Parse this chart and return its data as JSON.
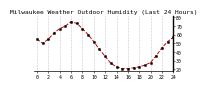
{
  "title": "Milwaukee Weather Outdoor Humidity (Last 24 Hours)",
  "x_values": [
    0,
    1,
    2,
    3,
    4,
    5,
    6,
    7,
    8,
    9,
    10,
    11,
    12,
    13,
    14,
    15,
    16,
    17,
    18,
    19,
    20,
    21,
    22,
    23,
    24
  ],
  "y_values": [
    55,
    50,
    55,
    62,
    67,
    70,
    75,
    73,
    67,
    60,
    52,
    43,
    35,
    27,
    23,
    21,
    21,
    22,
    23,
    25,
    28,
    36,
    45,
    52,
    57
  ],
  "line_color": "#cc0000",
  "marker_color": "#000000",
  "bg_color": "#ffffff",
  "grid_color": "#999999",
  "ylim": [
    18,
    82
  ],
  "xlim": [
    -0.5,
    24
  ],
  "ytick_values": [
    20,
    30,
    40,
    50,
    60,
    70,
    80
  ],
  "xtick_values": [
    0,
    2,
    4,
    6,
    8,
    10,
    12,
    14,
    16,
    18,
    20,
    22,
    24
  ],
  "title_fontsize": 4.5,
  "tick_fontsize": 3.5
}
